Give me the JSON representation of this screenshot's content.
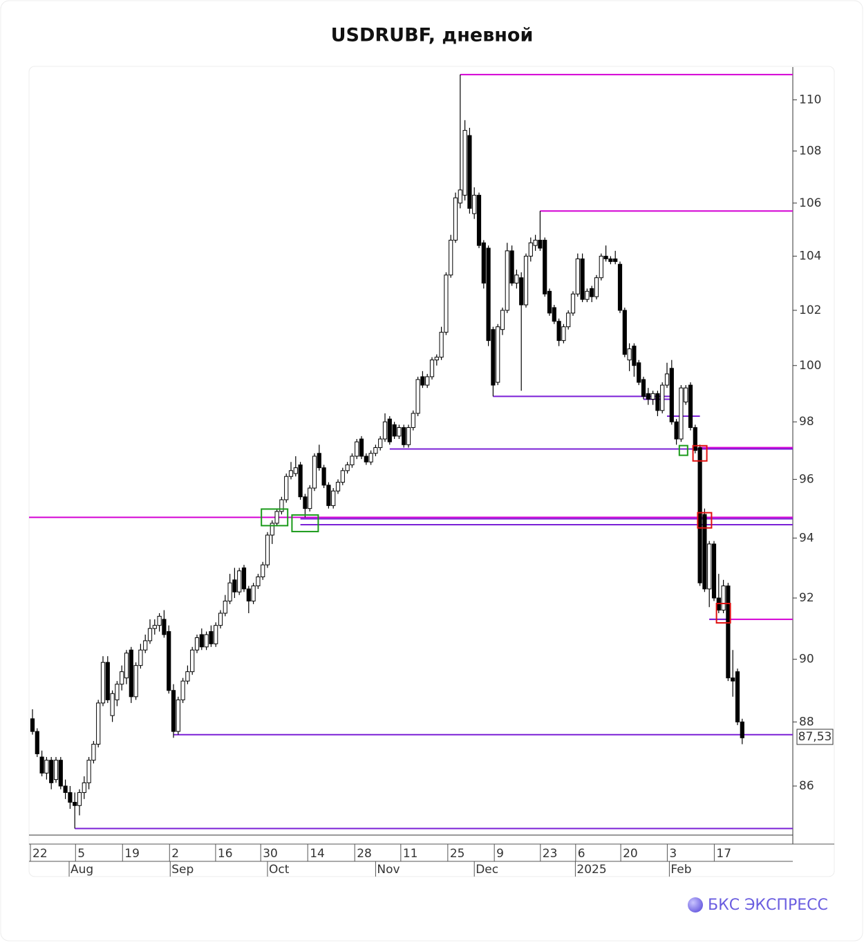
{
  "chart_data": {
    "type": "candlestick",
    "title": "USDRUBF, дневной",
    "log_scale": true,
    "ylim": [
      84.5,
      111.3
    ],
    "yticks": [
      86,
      88,
      90,
      92,
      94,
      96,
      98,
      100,
      102,
      104,
      106,
      108,
      110
    ],
    "up_color": "#ffffff",
    "down_color": "#000000",
    "candles": [
      [
        88.1,
        88.4,
        87.6,
        87.7
      ],
      [
        87.7,
        87.8,
        86.9,
        87.0
      ],
      [
        86.9,
        87.1,
        86.3,
        86.4
      ],
      [
        86.4,
        86.9,
        86.2,
        86.8
      ],
      [
        86.8,
        86.9,
        85.9,
        86.1
      ],
      [
        86.2,
        86.9,
        86.1,
        86.8
      ],
      [
        86.8,
        86.9,
        85.9,
        86.0
      ],
      [
        86.0,
        86.2,
        85.6,
        85.8
      ],
      [
        85.8,
        86.0,
        85.3,
        85.5
      ],
      [
        85.5,
        85.8,
        84.7,
        85.4
      ],
      [
        85.4,
        85.9,
        85.1,
        85.8
      ],
      [
        85.8,
        86.3,
        85.6,
        86.1
      ],
      [
        86.1,
        86.9,
        85.9,
        86.8
      ],
      [
        86.8,
        87.4,
        86.7,
        87.3
      ],
      [
        87.3,
        88.7,
        87.2,
        88.6
      ],
      [
        88.6,
        90.1,
        88.5,
        89.9
      ],
      [
        89.9,
        90.1,
        88.6,
        88.7
      ],
      [
        88.2,
        89.0,
        88.0,
        88.9
      ],
      [
        88.7,
        89.3,
        88.5,
        89.2
      ],
      [
        89.2,
        89.8,
        89.0,
        89.6
      ],
      [
        89.4,
        90.3,
        89.2,
        90.2
      ],
      [
        90.3,
        90.4,
        88.6,
        88.8
      ],
      [
        88.8,
        89.9,
        88.7,
        89.8
      ],
      [
        89.8,
        90.5,
        89.7,
        90.3
      ],
      [
        90.3,
        90.8,
        90.2,
        90.6
      ],
      [
        90.6,
        91.3,
        90.5,
        91.0
      ],
      [
        91.0,
        91.3,
        90.8,
        91.1
      ],
      [
        91.1,
        91.5,
        90.9,
        91.4
      ],
      [
        91.3,
        91.6,
        90.7,
        90.8
      ],
      [
        90.9,
        91.1,
        88.9,
        89.0
      ],
      [
        89.0,
        89.2,
        87.5,
        87.7
      ],
      [
        87.7,
        88.8,
        87.6,
        88.7
      ],
      [
        88.7,
        89.4,
        88.6,
        89.3
      ],
      [
        89.3,
        89.8,
        89.2,
        89.6
      ],
      [
        89.6,
        90.4,
        89.5,
        90.3
      ],
      [
        90.3,
        90.8,
        90.2,
        90.7
      ],
      [
        90.8,
        91.0,
        90.3,
        90.4
      ],
      [
        90.4,
        90.9,
        90.3,
        90.8
      ],
      [
        90.9,
        91.1,
        90.4,
        90.5
      ],
      [
        90.5,
        91.2,
        90.4,
        91.1
      ],
      [
        91.1,
        91.6,
        91.0,
        91.5
      ],
      [
        91.5,
        92.1,
        91.4,
        91.9
      ],
      [
        91.9,
        92.8,
        91.8,
        92.5
      ],
      [
        92.6,
        93.0,
        92.0,
        92.2
      ],
      [
        92.2,
        93.0,
        92.1,
        92.9
      ],
      [
        93.0,
        93.1,
        92.2,
        92.3
      ],
      [
        92.3,
        92.4,
        91.5,
        91.9
      ],
      [
        91.9,
        92.5,
        91.8,
        92.4
      ],
      [
        92.4,
        92.8,
        92.3,
        92.7
      ],
      [
        92.7,
        93.2,
        92.6,
        93.1
      ],
      [
        93.1,
        94.2,
        93.0,
        94.1
      ],
      [
        94.1,
        94.6,
        93.8,
        94.5
      ],
      [
        94.5,
        95.0,
        94.4,
        94.9
      ],
      [
        94.9,
        95.4,
        94.8,
        95.3
      ],
      [
        95.3,
        96.2,
        95.2,
        96.1
      ],
      [
        96.1,
        96.6,
        96.0,
        96.3
      ],
      [
        96.2,
        96.8,
        96.1,
        96.4
      ],
      [
        96.5,
        96.6,
        95.3,
        95.4
      ],
      [
        95.4,
        95.5,
        94.7,
        95.0
      ],
      [
        95.0,
        95.8,
        94.9,
        95.7
      ],
      [
        95.7,
        96.9,
        95.6,
        96.8
      ],
      [
        96.9,
        97.2,
        96.3,
        96.4
      ],
      [
        96.4,
        96.5,
        95.7,
        95.8
      ],
      [
        95.8,
        95.9,
        95.0,
        95.1
      ],
      [
        95.1,
        95.7,
        95.0,
        95.6
      ],
      [
        95.6,
        96.0,
        95.5,
        95.9
      ],
      [
        95.9,
        96.4,
        95.8,
        96.3
      ],
      [
        96.3,
        96.6,
        96.2,
        96.5
      ],
      [
        96.5,
        96.9,
        96.4,
        96.8
      ],
      [
        96.8,
        97.4,
        96.7,
        97.3
      ],
      [
        97.4,
        97.5,
        96.7,
        96.8
      ],
      [
        96.8,
        96.9,
        96.5,
        96.6
      ],
      [
        96.6,
        97.0,
        96.5,
        96.9
      ],
      [
        96.9,
        97.2,
        96.8,
        97.1
      ],
      [
        97.1,
        97.5,
        97.0,
        97.4
      ],
      [
        97.4,
        98.3,
        97.3,
        98.0
      ],
      [
        98.1,
        98.2,
        97.2,
        97.3
      ],
      [
        97.9,
        98.0,
        97.4,
        97.5
      ],
      [
        97.5,
        97.9,
        97.4,
        97.8
      ],
      [
        97.8,
        97.9,
        97.1,
        97.2
      ],
      [
        97.2,
        97.9,
        97.1,
        97.8
      ],
      [
        97.8,
        98.4,
        97.7,
        98.3
      ],
      [
        98.3,
        99.6,
        98.2,
        99.5
      ],
      [
        99.6,
        99.8,
        99.2,
        99.3
      ],
      [
        99.3,
        99.7,
        99.2,
        99.6
      ],
      [
        99.6,
        100.3,
        99.5,
        100.2
      ],
      [
        100.2,
        100.4,
        100.0,
        100.3
      ],
      [
        100.3,
        101.4,
        100.2,
        101.2
      ],
      [
        101.2,
        103.4,
        101.1,
        103.3
      ],
      [
        103.3,
        104.8,
        103.2,
        104.6
      ],
      [
        104.6,
        106.4,
        104.5,
        106.2
      ],
      [
        106.0,
        111.0,
        105.8,
        106.5
      ],
      [
        106.3,
        109.2,
        106.1,
        108.8
      ],
      [
        108.6,
        108.9,
        105.6,
        105.8
      ],
      [
        105.6,
        106.6,
        105.4,
        106.3
      ],
      [
        106.3,
        106.4,
        104.3,
        104.4
      ],
      [
        104.5,
        104.6,
        102.8,
        103.0
      ],
      [
        104.3,
        104.4,
        100.7,
        100.9
      ],
      [
        101.3,
        101.4,
        98.9,
        99.3
      ],
      [
        99.4,
        101.5,
        99.3,
        101.4
      ],
      [
        101.3,
        102.1,
        101.1,
        102.0
      ],
      [
        102.0,
        104.5,
        101.9,
        104.2
      ],
      [
        104.2,
        104.4,
        102.9,
        103.0
      ],
      [
        103.0,
        103.5,
        102.8,
        103.3
      ],
      [
        103.2,
        103.4,
        99.1,
        102.2
      ],
      [
        102.2,
        104.1,
        102.1,
        104.0
      ],
      [
        104.0,
        104.7,
        103.8,
        104.5
      ],
      [
        104.4,
        104.8,
        104.2,
        104.6
      ],
      [
        104.6,
        105.7,
        104.2,
        104.3
      ],
      [
        104.6,
        104.7,
        102.5,
        102.6
      ],
      [
        102.7,
        102.8,
        101.8,
        101.9
      ],
      [
        102.1,
        102.2,
        101.5,
        101.6
      ],
      [
        101.6,
        101.7,
        100.7,
        100.9
      ],
      [
        100.9,
        101.5,
        100.8,
        101.4
      ],
      [
        101.4,
        102.0,
        101.3,
        101.9
      ],
      [
        101.9,
        102.7,
        101.8,
        102.6
      ],
      [
        102.6,
        104.1,
        102.5,
        103.9
      ],
      [
        103.9,
        104.1,
        102.3,
        102.4
      ],
      [
        102.4,
        102.8,
        102.3,
        102.7
      ],
      [
        102.8,
        102.9,
        102.3,
        102.5
      ],
      [
        102.5,
        103.3,
        102.4,
        103.2
      ],
      [
        103.2,
        104.1,
        103.1,
        104.0
      ],
      [
        104.0,
        104.4,
        103.8,
        103.9
      ],
      [
        103.9,
        104.0,
        103.7,
        103.8
      ],
      [
        103.9,
        104.2,
        103.7,
        103.8
      ],
      [
        103.7,
        103.8,
        101.9,
        102.0
      ],
      [
        102.0,
        102.1,
        100.3,
        100.4
      ],
      [
        100.2,
        100.8,
        99.8,
        100.6
      ],
      [
        100.7,
        100.8,
        99.6,
        100.0
      ],
      [
        100.1,
        100.2,
        99.3,
        99.4
      ],
      [
        99.5,
        99.6,
        98.8,
        98.9
      ],
      [
        99.0,
        99.2,
        98.6,
        98.8
      ],
      [
        98.8,
        99.1,
        98.6,
        99.0
      ],
      [
        99.0,
        99.1,
        98.2,
        98.4
      ],
      [
        98.4,
        99.4,
        98.3,
        99.3
      ],
      [
        99.3,
        100.1,
        99.2,
        99.7
      ],
      [
        99.9,
        100.2,
        97.9,
        98.0
      ],
      [
        98.0,
        98.1,
        97.2,
        97.4
      ],
      [
        97.4,
        99.3,
        97.3,
        99.2
      ],
      [
        98.7,
        99.3,
        98.6,
        99.2
      ],
      [
        99.3,
        99.4,
        97.7,
        97.8
      ],
      [
        97.8,
        97.9,
        96.9,
        97.0
      ],
      [
        97.1,
        97.2,
        92.4,
        92.5
      ],
      [
        94.8,
        95.0,
        92.2,
        92.3
      ],
      [
        92.3,
        93.9,
        91.7,
        93.8
      ],
      [
        93.8,
        93.9,
        91.9,
        92.0
      ],
      [
        92.0,
        92.8,
        91.5,
        91.6
      ],
      [
        91.6,
        92.6,
        91.5,
        92.4
      ],
      [
        92.4,
        92.5,
        89.3,
        89.4
      ],
      [
        89.4,
        90.3,
        88.8,
        89.3
      ],
      [
        89.6,
        89.7,
        87.9,
        88.0
      ],
      [
        88.0,
        88.1,
        87.3,
        87.5
      ]
    ],
    "xticks": [
      {
        "value": 0,
        "label": "22"
      },
      {
        "value": 9.6,
        "label": "5"
      },
      {
        "value": 19.6,
        "label": "19"
      },
      {
        "value": 29.6,
        "label": "2"
      },
      {
        "value": 39.4,
        "label": "16"
      },
      {
        "value": 49,
        "label": "30"
      },
      {
        "value": 59,
        "label": "14"
      },
      {
        "value": 69,
        "label": "28"
      },
      {
        "value": 78.8,
        "label": "11"
      },
      {
        "value": 88.8,
        "label": "25"
      },
      {
        "value": 98.7,
        "label": "9"
      },
      {
        "value": 108.5,
        "label": "23"
      },
      {
        "value": 116,
        "label": "6"
      },
      {
        "value": 125.6,
        "label": "20"
      },
      {
        "value": 135.5,
        "label": "3"
      },
      {
        "value": 145.5,
        "label": "17"
      }
    ],
    "month_ticks": [
      {
        "value": 7.8,
        "label": "Aug"
      },
      {
        "value": 29.3,
        "label": "Sep"
      },
      {
        "value": 50,
        "label": "Oct"
      },
      {
        "value": 73,
        "label": "Nov"
      },
      {
        "value": 94,
        "label": "Dec"
      },
      {
        "value": 115.5,
        "label": "2025"
      },
      {
        "value": 135.5,
        "label": "Feb"
      }
    ],
    "levels": [
      {
        "value": 111.0,
        "color": "#d400d4",
        "from": 91
      },
      {
        "value": 105.7,
        "color": "#d400d4",
        "from": 108
      },
      {
        "value": 98.9,
        "color": "#7a1fd6",
        "from": 98,
        "to": 136
      },
      {
        "value": 98.8,
        "color": "#7a1fd6",
        "from": 130,
        "to": 136
      },
      {
        "value": 98.2,
        "color": "#7a1fd6",
        "from": 135,
        "to": 142
      },
      {
        "value": 97.05,
        "color": "#7a1fd6",
        "from": 76
      },
      {
        "value": 97.1,
        "color": "#d400d4",
        "from": 142
      },
      {
        "value": 94.7,
        "color": "#d400d4"
      },
      {
        "value": 94.65,
        "color": "#7a1fd6",
        "from": 57
      },
      {
        "value": 94.45,
        "color": "#7a1fd6",
        "from": 57
      },
      {
        "value": 91.3,
        "color": "#d400d4",
        "from": 144
      },
      {
        "value": 91.3,
        "color": "#7a1fd6",
        "from": 144,
        "to": 148
      },
      {
        "value": 87.6,
        "color": "#7a1fd6",
        "from": 30
      },
      {
        "value": 84.7,
        "color": "#7a1fd6",
        "from": 9
      }
    ],
    "boxes": [
      {
        "at": 51.5,
        "value": 94.7,
        "color": "#1a9a1a"
      },
      {
        "at": 58,
        "value": 94.5,
        "color": "#1a9a1a"
      },
      {
        "at": 138.5,
        "value": 97.0,
        "color": "#1a9a1a"
      },
      {
        "at": 142,
        "value": 96.9,
        "color": "#e01010"
      },
      {
        "at": 143,
        "value": 94.6,
        "color": "#e01010"
      },
      {
        "at": 147,
        "value": 91.5,
        "color": "#e01010"
      }
    ],
    "last_price": {
      "value": 87.53,
      "label": "87,53"
    },
    "brand": "БКС ЭКСПРЕСС"
  }
}
